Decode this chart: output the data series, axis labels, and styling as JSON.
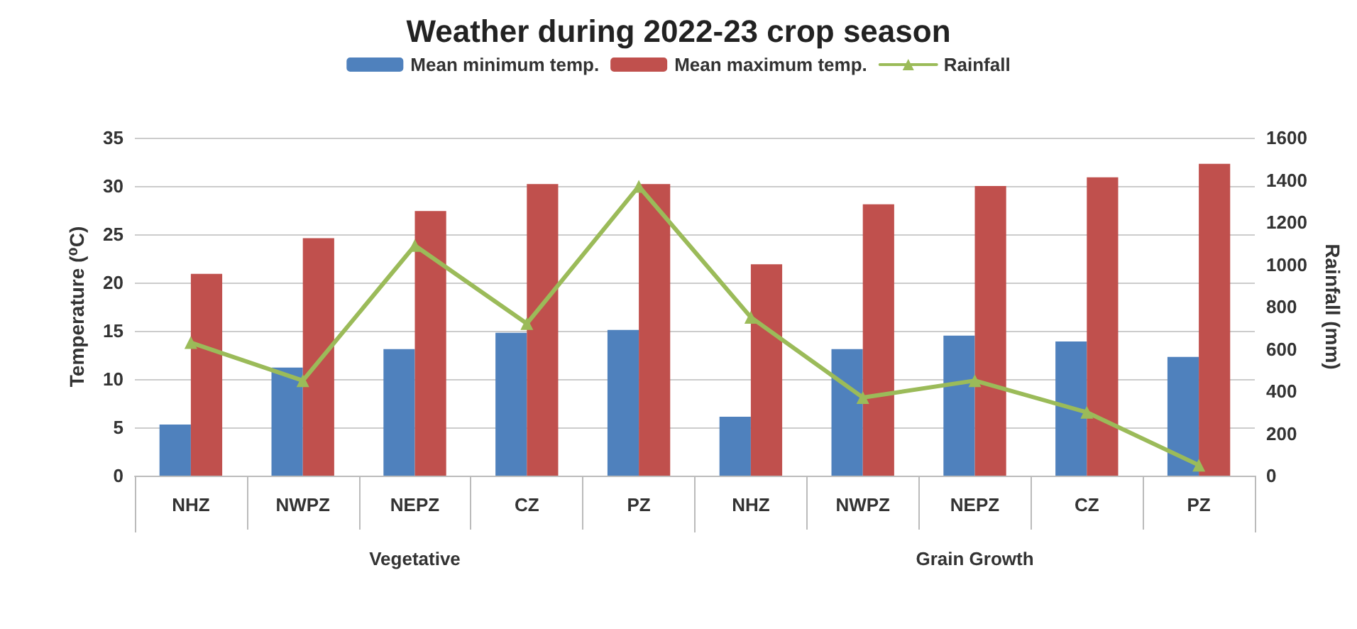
{
  "chart_data": {
    "type": "bar",
    "title": "Weather during 2022-23 crop season",
    "categories": [
      "NHZ",
      "NWPZ",
      "NEPZ",
      "CZ",
      "PZ",
      "NHZ",
      "NWPZ",
      "NEPZ",
      "CZ",
      "PZ"
    ],
    "series": [
      {
        "name": "Mean minimum temp.",
        "color": "#4f81bd",
        "values": [
          5.3,
          11.2,
          13.1,
          14.8,
          15.1,
          6.1,
          13.1,
          14.5,
          13.9,
          12.3
        ]
      },
      {
        "name": "Mean maximum temp.",
        "color": "#c0504d",
        "values": [
          20.9,
          24.6,
          27.4,
          30.2,
          30.2,
          21.9,
          28.1,
          30.0,
          30.9,
          32.3
        ]
      },
      {
        "name": "Rainfall",
        "type": "line",
        "axis": "y2",
        "color": "#9bbb59",
        "values": [
          630,
          450,
          1090,
          720,
          1370,
          750,
          370,
          450,
          300,
          50
        ]
      }
    ],
    "ylabel": "Temperature (⁰C)",
    "y2label": "Rainfall (mm)",
    "ylim": [
      0,
      35
    ],
    "yticks": [
      0,
      5,
      10,
      15,
      20,
      25,
      30,
      35
    ],
    "y2lim": [
      0,
      1600
    ],
    "y2ticks": [
      0,
      200,
      400,
      600,
      800,
      1000,
      1200,
      1400,
      1600
    ],
    "annotations": [
      "Vegetative",
      "Grain Growth"
    ],
    "grid": "y",
    "legend": "top",
    "marker": "triangle",
    "line_style": "solid"
  }
}
